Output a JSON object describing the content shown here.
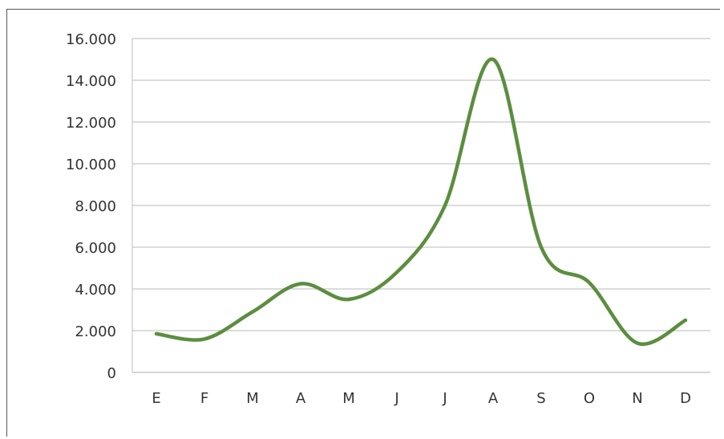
{
  "chart_data": {
    "type": "line",
    "categories": [
      "E",
      "F",
      "M",
      "A",
      "M",
      "J",
      "J",
      "A",
      "S",
      "O",
      "N",
      "D"
    ],
    "series": [
      {
        "values": [
          1850,
          1600,
          2900,
          4250,
          3500,
          4800,
          8000,
          15000,
          6000,
          4300,
          1400,
          2500
        ]
      }
    ],
    "ylim": [
      0,
      16000
    ],
    "yticks": [
      "0",
      "2.000",
      "4.000",
      "6.000",
      "8.000",
      "10.000",
      "12.000",
      "14.000",
      "16.000"
    ],
    "grid": true,
    "smooth": true,
    "line_color": "#5b8e3f",
    "grid_color": "#c8c8c8",
    "title": "",
    "xlabel": "",
    "ylabel": ""
  }
}
